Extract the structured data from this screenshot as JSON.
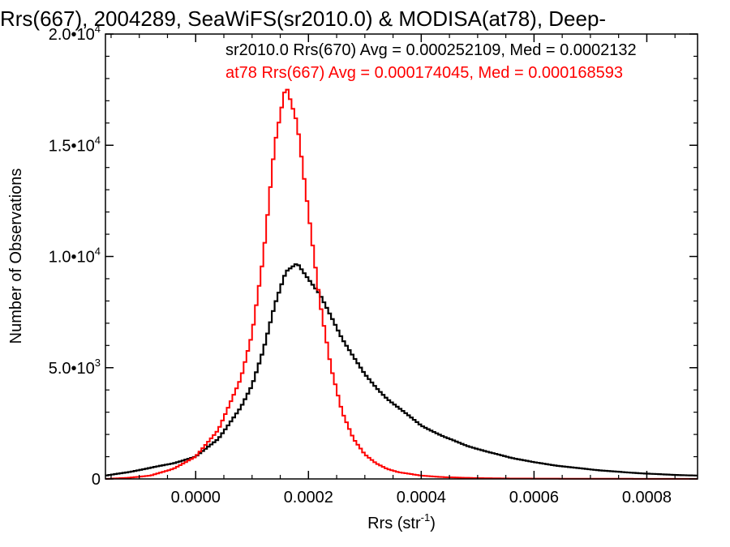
{
  "chart_data": {
    "type": "line",
    "title": "Rrs(667), 2004289, SeaWiFS(sr2010.0) & MODISA(at78), Deep-",
    "xlabel_main": "Rrs (str",
    "xlabel_sup": "-1",
    "xlabel_close": ")",
    "ylabel": "Number of Observations",
    "xlim": [
      -0.00016,
      0.00089
    ],
    "ylim": [
      0,
      20000
    ],
    "x_ticks": [
      {
        "value": 0.0,
        "label": "0.0000"
      },
      {
        "value": 0.0002,
        "label": "0.0002"
      },
      {
        "value": 0.0004,
        "label": "0.0004"
      },
      {
        "value": 0.0006,
        "label": "0.0006"
      },
      {
        "value": 0.0008,
        "label": "0.0008"
      }
    ],
    "y_ticks": [
      {
        "value": 0,
        "mant": "0",
        "exp": ""
      },
      {
        "value": 5000,
        "mant": "5.0•10",
        "exp": "3"
      },
      {
        "value": 10000,
        "mant": "1.0•10",
        "exp": "4"
      },
      {
        "value": 15000,
        "mant": "1.5•10",
        "exp": "4"
      },
      {
        "value": 20000,
        "mant": "2.0•10",
        "exp": "4"
      }
    ],
    "legend": [
      {
        "text": "sr2010.0 Rrs(670) Avg = 0.000252109, Med = 0.0002132",
        "color": "#000000"
      },
      {
        "text": "at78 Rrs(667) Avg = 0.000174045, Med = 0.000168593",
        "color": "#ff0000"
      }
    ],
    "series": [
      {
        "color": "#000000",
        "points": [
          [
            -0.00016,
            150
          ],
          [
            -0.00012,
            300
          ],
          [
            -8e-05,
            500
          ],
          [
            -4e-05,
            700
          ],
          [
            0.0,
            1000
          ],
          [
            4e-05,
            1800
          ],
          [
            8e-05,
            3200
          ],
          [
            0.0001,
            4200
          ],
          [
            0.00012,
            5800
          ],
          [
            0.00014,
            7800
          ],
          [
            0.00016,
            9300
          ],
          [
            0.00018,
            9700
          ],
          [
            0.0002,
            9000
          ],
          [
            0.00022,
            8300
          ],
          [
            0.00024,
            7300
          ],
          [
            0.00026,
            6300
          ],
          [
            0.00028,
            5500
          ],
          [
            0.0003,
            4700
          ],
          [
            0.00032,
            4100
          ],
          [
            0.00034,
            3600
          ],
          [
            0.00036,
            3200
          ],
          [
            0.00038,
            2800
          ],
          [
            0.0004,
            2400
          ],
          [
            0.00044,
            1900
          ],
          [
            0.00048,
            1500
          ],
          [
            0.00052,
            1200
          ],
          [
            0.00056,
            950
          ],
          [
            0.0006,
            750
          ],
          [
            0.00064,
            600
          ],
          [
            0.00068,
            480
          ],
          [
            0.00072,
            380
          ],
          [
            0.00076,
            300
          ],
          [
            0.0008,
            240
          ],
          [
            0.00084,
            190
          ],
          [
            0.00089,
            150
          ]
        ]
      },
      {
        "color": "#ff0000",
        "points": [
          [
            -0.00016,
            0
          ],
          [
            -0.00012,
            50
          ],
          [
            -8e-05,
            150
          ],
          [
            -4e-05,
            450
          ],
          [
            0.0,
            1000
          ],
          [
            4e-05,
            2200
          ],
          [
            8e-05,
            4500
          ],
          [
            0.0001,
            6500
          ],
          [
            0.00012,
            10000
          ],
          [
            0.00014,
            15000
          ],
          [
            0.00016,
            17700
          ],
          [
            0.00018,
            16000
          ],
          [
            0.0002,
            12000
          ],
          [
            0.00022,
            8000
          ],
          [
            0.00024,
            5000
          ],
          [
            0.00026,
            3000
          ],
          [
            0.00028,
            1800
          ],
          [
            0.0003,
            1100
          ],
          [
            0.00032,
            700
          ],
          [
            0.00034,
            450
          ],
          [
            0.00036,
            300
          ],
          [
            0.0004,
            150
          ],
          [
            0.00044,
            80
          ],
          [
            0.00048,
            50
          ],
          [
            0.00052,
            30
          ],
          [
            0.00056,
            20
          ],
          [
            0.0006,
            15
          ],
          [
            0.0007,
            8
          ],
          [
            0.00089,
            5
          ]
        ]
      }
    ]
  }
}
